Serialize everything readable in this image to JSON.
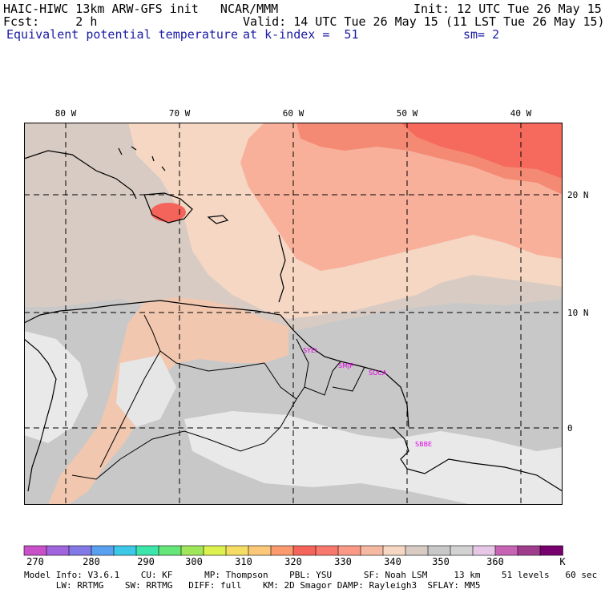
{
  "header": {
    "model_line": "HAIC-HIWC 13km ARW-GFS init   NCAR/MMM",
    "fcst_label": "Fcst:     2 h",
    "field_name": "Equivalent potential temperature",
    "init": "Init: 12 UTC Tue 26 May 15",
    "valid": "Valid: 14 UTC Tue 26 May 15 (11 LST Tue 26 May 15)",
    "k_index": "at k-index =  51",
    "smooth": "sm= 2"
  },
  "map": {
    "lon_labels": [
      "80 W",
      "70 W",
      "60 W",
      "50 W",
      "40 W"
    ],
    "lat_labels": [
      "20 N",
      "10 N",
      "0"
    ],
    "stations": [
      "SYEI",
      "SMJP",
      "SOCA",
      "SBBE"
    ]
  },
  "colorbar": {
    "colors": [
      "#c850c8",
      "#a064dc",
      "#8278e6",
      "#5aa0f0",
      "#3cc8e6",
      "#3ce6aa",
      "#64e678",
      "#a0e65a",
      "#dcf050",
      "#f5dc64",
      "#fac878",
      "#fa9a6e",
      "#f5645a",
      "#f8786e",
      "#fa9a86",
      "#f5b9a2",
      "#f5d7c3",
      "#d7cbc3",
      "#c8c8c8",
      "#d2d2d2",
      "#e6c8e6",
      "#c864b4",
      "#a03c8c",
      "#78006e"
    ],
    "labels": [
      "270",
      "280",
      "290",
      "300",
      "310",
      "320",
      "330",
      "340",
      "350",
      "360",
      "K"
    ]
  },
  "footer": {
    "line1": "Model Info: V3.6.1    CU: KF      MP: Thompson    PBL: YSU      SF: Noah LSM     13 km    51 levels   60 sec",
    "line2": "      LW: RRTMG    SW: RRTMG   DIFF: full    KM: 2D Smagor DAMP: Rayleigh3  SFLAY: MM5"
  }
}
